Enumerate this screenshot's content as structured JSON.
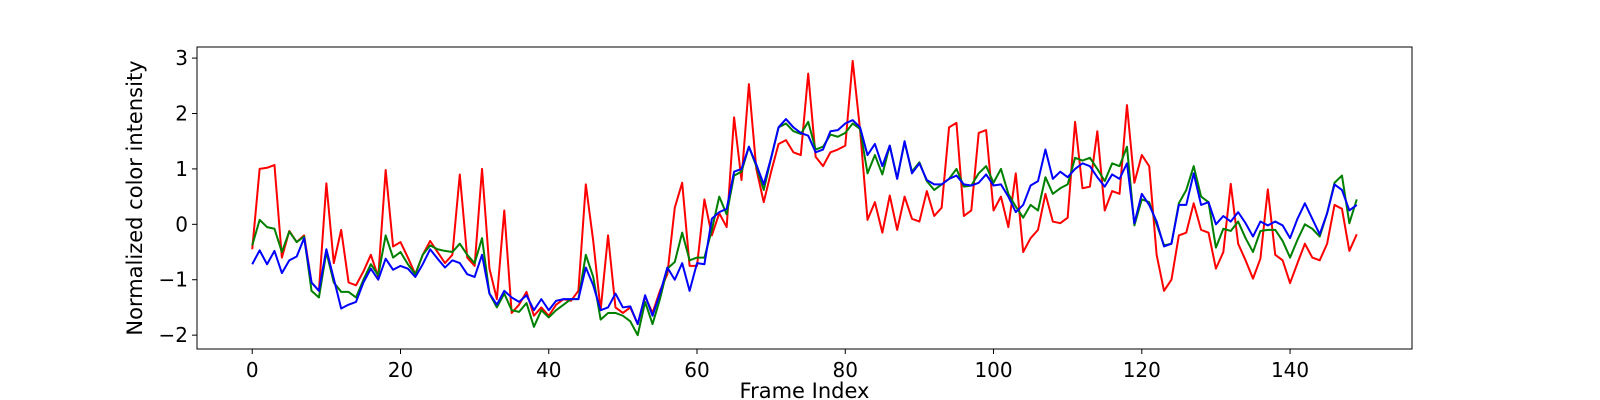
{
  "chart_data": {
    "type": "line",
    "title": "",
    "xlabel": "Frame Index",
    "ylabel": "Normalized color intensity",
    "xlim": [
      -7.45,
      156.45
    ],
    "ylim": [
      -2.25,
      3.2
    ],
    "xticks": [
      0,
      20,
      40,
      60,
      80,
      100,
      120,
      140
    ],
    "yticks": [
      -2,
      -1,
      0,
      1,
      2,
      3
    ],
    "grid": false,
    "legend": "none",
    "x": [
      0,
      1,
      2,
      3,
      4,
      5,
      6,
      7,
      8,
      9,
      10,
      11,
      12,
      13,
      14,
      15,
      16,
      17,
      18,
      19,
      20,
      21,
      22,
      23,
      24,
      25,
      26,
      27,
      28,
      29,
      30,
      31,
      32,
      33,
      34,
      35,
      36,
      37,
      38,
      39,
      40,
      41,
      42,
      43,
      44,
      45,
      46,
      47,
      48,
      49,
      50,
      51,
      52,
      53,
      54,
      55,
      56,
      57,
      58,
      59,
      60,
      61,
      62,
      63,
      64,
      65,
      66,
      67,
      68,
      69,
      70,
      71,
      72,
      73,
      74,
      75,
      76,
      77,
      78,
      79,
      80,
      81,
      82,
      83,
      84,
      85,
      86,
      87,
      88,
      89,
      90,
      91,
      92,
      93,
      94,
      95,
      96,
      97,
      98,
      99,
      100,
      101,
      102,
      103,
      104,
      105,
      106,
      107,
      108,
      109,
      110,
      111,
      112,
      113,
      114,
      115,
      116,
      117,
      118,
      119,
      120,
      121,
      122,
      123,
      124,
      125,
      126,
      127,
      128,
      129,
      130,
      131,
      132,
      133,
      134,
      135,
      136,
      137,
      138,
      139,
      140,
      141,
      142,
      143,
      144,
      145,
      146,
      147,
      148,
      149
    ],
    "series": [
      {
        "color": "#ff0000",
        "values": [
          -0.45,
          1.0,
          1.02,
          1.07,
          -0.6,
          -0.12,
          -0.32,
          -0.2,
          -1.05,
          -1.2,
          0.74,
          -0.7,
          -0.1,
          -1.05,
          -1.1,
          -0.85,
          -0.55,
          -0.95,
          0.98,
          -0.4,
          -0.32,
          -0.6,
          -0.9,
          -0.55,
          -0.3,
          -0.5,
          -0.7,
          -0.55,
          0.9,
          -0.6,
          -0.75,
          1.0,
          -0.8,
          -1.35,
          0.25,
          -1.6,
          -1.45,
          -1.22,
          -1.65,
          -1.5,
          -1.65,
          -1.45,
          -1.35,
          -1.38,
          -1.2,
          0.72,
          -0.3,
          -1.55,
          -0.2,
          -1.5,
          -1.6,
          -1.5,
          -1.8,
          -1.3,
          -1.6,
          -1.2,
          -0.9,
          0.3,
          0.75,
          -0.75,
          -0.75,
          0.45,
          -0.2,
          0.2,
          -0.05,
          1.93,
          0.8,
          2.53,
          1.0,
          0.4,
          0.95,
          1.45,
          1.52,
          1.3,
          1.25,
          2.72,
          1.22,
          1.05,
          1.3,
          1.35,
          1.42,
          2.95,
          1.7,
          0.08,
          0.4,
          -0.15,
          0.52,
          -0.1,
          0.5,
          0.1,
          0.05,
          0.6,
          0.15,
          0.3,
          1.75,
          1.83,
          0.15,
          0.25,
          1.65,
          1.7,
          0.25,
          0.5,
          -0.05,
          0.92,
          -0.5,
          -0.25,
          -0.1,
          0.55,
          0.05,
          0.02,
          0.12,
          1.85,
          0.65,
          0.68,
          1.68,
          0.25,
          0.6,
          0.55,
          2.15,
          0.75,
          1.25,
          1.05,
          -0.55,
          -1.2,
          -1.0,
          -0.2,
          -0.15,
          0.38,
          -0.1,
          -0.15,
          -0.8,
          -0.5,
          0.73,
          -0.35,
          -0.65,
          -0.98,
          -0.62,
          0.63,
          -0.55,
          -0.65,
          -1.06,
          -0.7,
          -0.35,
          -0.6,
          -0.65,
          -0.35,
          0.35,
          0.28,
          -0.48,
          -0.18
        ]
      },
      {
        "color": "#008000",
        "values": [
          -0.38,
          0.08,
          -0.05,
          -0.08,
          -0.5,
          -0.13,
          -0.32,
          -0.22,
          -1.2,
          -1.32,
          -0.5,
          -1.05,
          -1.22,
          -1.22,
          -1.32,
          -1.0,
          -0.72,
          -0.92,
          -0.2,
          -0.6,
          -0.5,
          -0.72,
          -0.9,
          -0.55,
          -0.38,
          -0.45,
          -0.48,
          -0.5,
          -0.35,
          -0.55,
          -0.7,
          -0.25,
          -1.25,
          -1.5,
          -1.25,
          -1.55,
          -1.58,
          -1.42,
          -1.85,
          -1.55,
          -1.68,
          -1.55,
          -1.45,
          -1.35,
          -1.35,
          -0.55,
          -0.95,
          -1.72,
          -1.6,
          -1.6,
          -1.65,
          -1.75,
          -2.0,
          -1.4,
          -1.8,
          -1.35,
          -0.8,
          -0.68,
          -0.15,
          -0.65,
          -0.6,
          -0.6,
          -0.1,
          0.5,
          0.18,
          0.88,
          0.95,
          1.4,
          1.05,
          0.62,
          1.2,
          1.75,
          1.82,
          1.68,
          1.63,
          1.85,
          1.35,
          1.4,
          1.62,
          1.58,
          1.65,
          1.82,
          1.72,
          0.92,
          1.25,
          0.9,
          1.42,
          0.83,
          1.48,
          0.95,
          1.12,
          0.78,
          0.62,
          0.72,
          0.82,
          1.0,
          0.68,
          0.7,
          0.92,
          1.05,
          0.75,
          1.0,
          0.55,
          0.32,
          0.12,
          0.35,
          0.25,
          0.85,
          0.55,
          0.65,
          0.72,
          1.2,
          1.15,
          1.2,
          1.0,
          0.78,
          1.1,
          1.05,
          1.4,
          -0.02,
          0.45,
          0.4,
          0.0,
          -0.38,
          -0.35,
          0.38,
          0.62,
          1.05,
          0.5,
          0.4,
          -0.42,
          -0.08,
          -0.12,
          0.05,
          -0.25,
          -0.5,
          -0.12,
          -0.1,
          -0.1,
          -0.3,
          -0.6,
          -0.28,
          0.0,
          -0.08,
          -0.22,
          0.2,
          0.75,
          0.88,
          0.02,
          0.45
        ]
      },
      {
        "color": "#0000ff",
        "values": [
          -0.72,
          -0.47,
          -0.72,
          -0.48,
          -0.88,
          -0.65,
          -0.58,
          -0.25,
          -1.05,
          -1.2,
          -0.45,
          -0.98,
          -1.52,
          -1.45,
          -1.4,
          -1.05,
          -0.8,
          -1.0,
          -0.62,
          -0.82,
          -0.75,
          -0.8,
          -0.95,
          -0.72,
          -0.45,
          -0.62,
          -0.78,
          -0.65,
          -0.7,
          -0.9,
          -0.95,
          -0.55,
          -1.25,
          -1.45,
          -1.2,
          -1.32,
          -1.4,
          -1.28,
          -1.55,
          -1.35,
          -1.55,
          -1.38,
          -1.35,
          -1.35,
          -1.35,
          -0.78,
          -1.1,
          -1.55,
          -1.5,
          -1.25,
          -1.5,
          -1.48,
          -1.8,
          -1.28,
          -1.65,
          -1.25,
          -0.78,
          -1.0,
          -0.7,
          -1.2,
          -0.7,
          -0.72,
          0.1,
          0.22,
          0.28,
          0.95,
          1.0,
          1.4,
          1.08,
          0.72,
          1.2,
          1.75,
          1.9,
          1.75,
          1.65,
          1.6,
          1.3,
          1.35,
          1.68,
          1.7,
          1.82,
          1.88,
          1.75,
          1.25,
          1.45,
          1.05,
          1.42,
          0.82,
          1.5,
          0.92,
          1.1,
          0.8,
          0.72,
          0.72,
          0.82,
          0.88,
          0.72,
          0.7,
          0.75,
          0.9,
          0.7,
          0.72,
          0.5,
          0.22,
          0.35,
          0.7,
          0.78,
          1.35,
          0.82,
          0.95,
          0.85,
          1.0,
          1.1,
          1.05,
          0.85,
          0.68,
          0.9,
          0.82,
          1.1,
          0.02,
          0.55,
          0.35,
          0.05,
          -0.4,
          -0.35,
          0.35,
          0.35,
          0.92,
          0.35,
          0.4,
          0.0,
          0.15,
          0.05,
          0.22,
          0.02,
          -0.22,
          0.05,
          -0.02,
          0.05,
          -0.02,
          -0.25,
          0.1,
          0.38,
          0.1,
          -0.18,
          0.2,
          0.72,
          0.62,
          0.25,
          0.35
        ]
      }
    ]
  }
}
